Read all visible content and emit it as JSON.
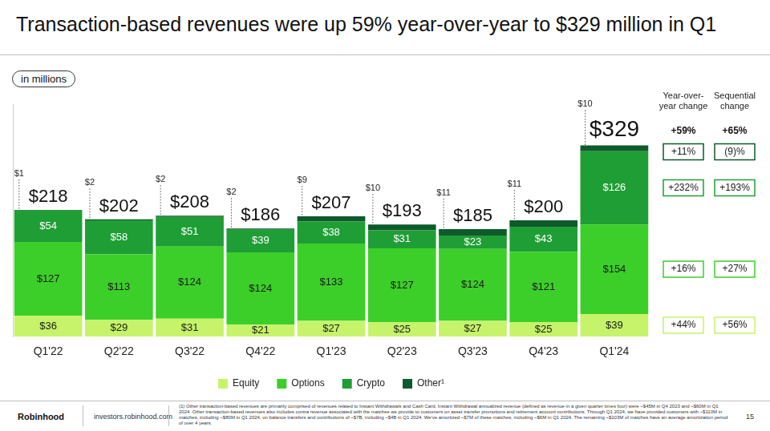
{
  "header": {
    "title": "Transaction-based revenues were up 59% year-over-year to $329 million in Q1",
    "unit_note": "in millions"
  },
  "chart_data": {
    "type": "bar",
    "stacked": true,
    "data_labels": true,
    "grid": false,
    "tick_labels": "x",
    "legend": "bottom",
    "categories": [
      "Q1'22",
      "Q2'22",
      "Q3'22",
      "Q4'22",
      "Q1'23",
      "Q2'23",
      "Q3'23",
      "Q4'23",
      "Q1'24"
    ],
    "ylim": [
      0,
      400
    ],
    "yticks": [],
    "series": [
      {
        "name": "Equity",
        "color": "#c6f36a",
        "values": [
          36,
          29,
          31,
          21,
          27,
          25,
          27,
          25,
          39
        ],
        "value_labels": [
          "$36",
          "$29",
          "$31",
          "$21",
          "$27",
          "$25",
          "$27",
          "$25",
          "$39"
        ],
        "yoy_change": {
          "value": 44,
          "label": "+44%"
        },
        "sequential_change": {
          "value": 56,
          "label": "+56%"
        }
      },
      {
        "name": "Options",
        "color": "#3ccf2a",
        "values": [
          127,
          113,
          124,
          124,
          133,
          127,
          124,
          121,
          154
        ],
        "value_labels": [
          "$127",
          "$113",
          "$124",
          "$124",
          "$133",
          "$127",
          "$124",
          "$121",
          "$154"
        ],
        "yoy_change": {
          "value": 16,
          "label": "+16%"
        },
        "sequential_change": {
          "value": 27,
          "label": "+27%"
        }
      },
      {
        "name": "Crypto",
        "color": "#1f9e36",
        "values": [
          54,
          58,
          51,
          39,
          38,
          31,
          23,
          43,
          126
        ],
        "value_labels": [
          "$54",
          "$58",
          "$51",
          "$39",
          "$38",
          "$31",
          "$23",
          "$43",
          "$126"
        ],
        "yoy_change": {
          "value": 232,
          "label": "+232%"
        },
        "sequential_change": {
          "value": 193,
          "label": "+193%"
        }
      },
      {
        "name": "Other¹",
        "color": "#0d5a2b",
        "values": [
          1,
          2,
          2,
          2,
          9,
          10,
          11,
          11,
          10
        ],
        "value_labels": [
          "$1",
          "$2",
          "$2",
          "$2",
          "$9",
          "$10",
          "$11",
          "$11",
          "$10"
        ],
        "yoy_change": {
          "value": 11,
          "label": "+11%"
        },
        "sequential_change": {
          "value": -9,
          "label": "(9)%"
        }
      }
    ],
    "totals": [
      218,
      202,
      208,
      186,
      207,
      193,
      185,
      200,
      329
    ],
    "total_labels": [
      "$218",
      "$202",
      "$208",
      "$186",
      "$207",
      "$193",
      "$185",
      "$200",
      "$329"
    ],
    "change_headers": [
      "Year-over-year change",
      "Sequential change"
    ],
    "total_yoy_change": {
      "value": 59,
      "label": "+59%"
    },
    "total_sequential_change": {
      "value": 65,
      "label": "+65%"
    }
  },
  "footer": {
    "brand": "Robinhood",
    "website": "investors.robinhood.com",
    "footnote": "(1) Other transaction-based revenues are primarily comprised of revenues related to Instant Withdrawals and Cash Card. Instant Withdrawal annualized revenue (defined as revenue in a given quarter times four) were ~$45M in Q4 2023 and ~$60M in Q1 2024. Other transaction-based revenues also includes contra revenue associated with the matches we provide to customers on asset transfer promotions and retirement account contributions. Through Q1 2024, we have provided customers with ~$110M in matches, including ~$80M in Q1 2024, on balance transfers and contributions of ~$7B, including ~$4B in Q1 2024. We've amortized ~$7M of these matches, including ~$6M in Q1 2024. The remaining ~$103M of matches have an average amortization period of over 4 years.",
    "page": 15
  }
}
